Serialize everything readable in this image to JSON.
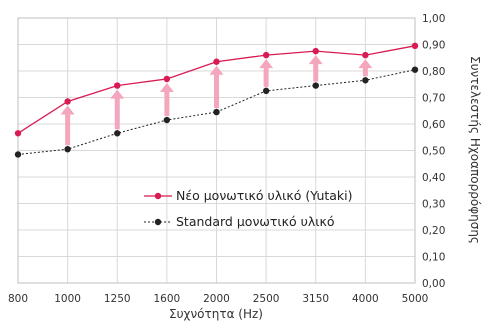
{
  "chart_data": {
    "type": "line",
    "title": "",
    "xlabel": "Συχνότητα (Hz)",
    "ylabel": "Συντελεστής Ηχοαπορρόφησης",
    "categories": [
      "800",
      "1000",
      "1250",
      "1600",
      "2000",
      "2500",
      "3150",
      "4000",
      "5000"
    ],
    "ylim": [
      0,
      1
    ],
    "y_ticks": [
      "0,00",
      "0,10",
      "0,20",
      "0,30",
      "0,40",
      "0,50",
      "0,60",
      "0,70",
      "0,80",
      "0,90",
      "1,00"
    ],
    "grid": true,
    "legend_position": "bottom-right",
    "series": [
      {
        "name": "Νέο μονωτικό υλικό (Yutaki)",
        "color": "#d81b52",
        "style": "solid",
        "values": [
          0.565,
          0.685,
          0.745,
          0.77,
          0.835,
          0.86,
          0.875,
          0.86,
          0.895
        ]
      },
      {
        "name": "Standard μονωτικό υλικό",
        "color": "#222222",
        "style": "dotted",
        "values": [
          0.485,
          0.505,
          0.565,
          0.615,
          0.645,
          0.725,
          0.745,
          0.765,
          0.805
        ]
      }
    ],
    "arrow_color": "#f4a6bd"
  }
}
